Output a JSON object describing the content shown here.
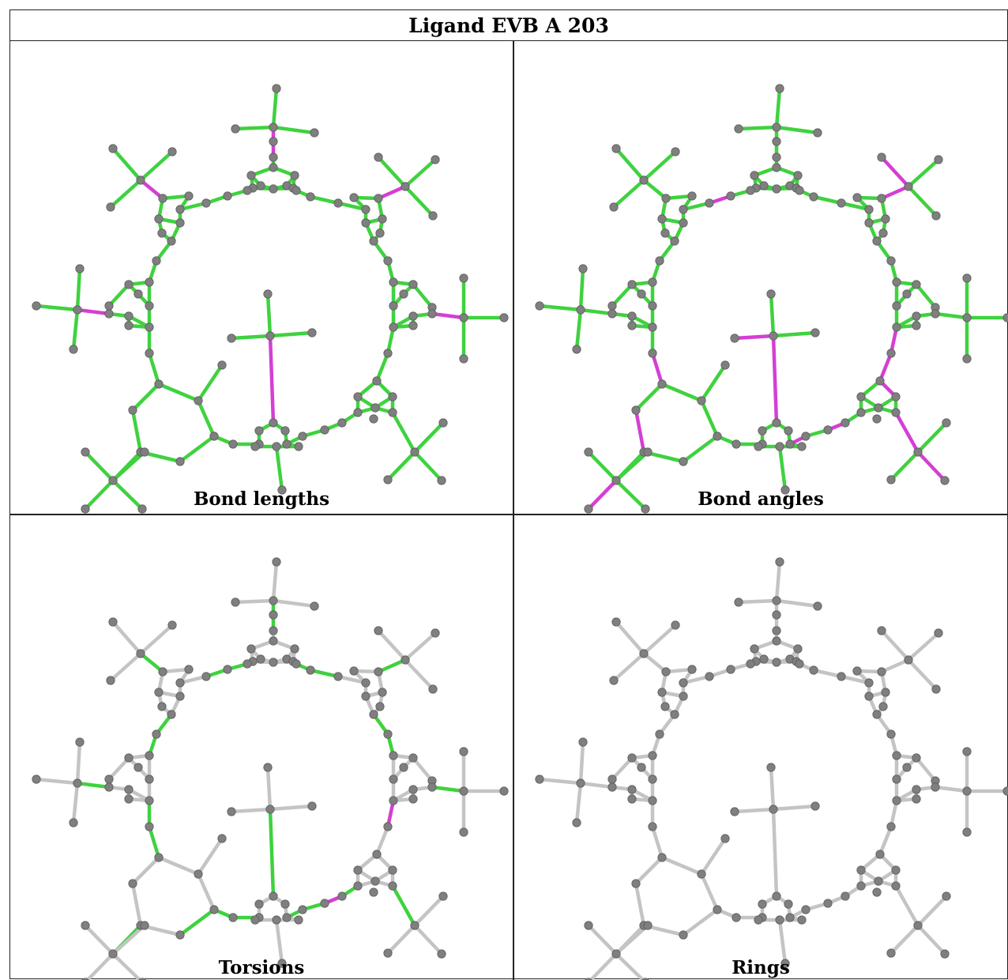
{
  "title": "Ligand EVB A 203",
  "panels": [
    {
      "caption": "Bond lengths"
    },
    {
      "caption": "Bond angles"
    },
    {
      "caption": "Torsions"
    },
    {
      "caption": "Rings"
    }
  ],
  "colors": {
    "atom": "#7f7f7f",
    "bond_ok": "#3fd23f",
    "bond_outlier": "#d43fd4",
    "bond_neutral": "#c4c4c4",
    "border": "#222222"
  },
  "legend_semantics": {
    "green": "within expected range",
    "magenta": "outlier",
    "grey": "not evaluated"
  }
}
